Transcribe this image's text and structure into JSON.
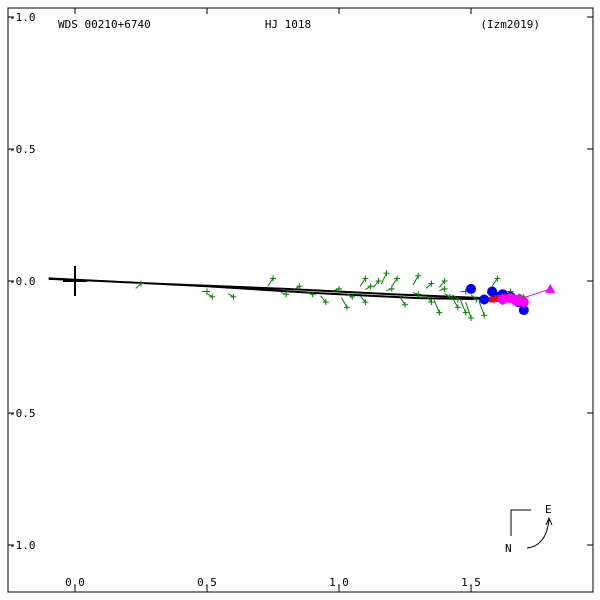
{
  "chart_data": {
    "type": "scatter",
    "header": {
      "left": "WDS 00210+6740",
      "center": "HJ 1018",
      "right": "(Izm2019)"
    },
    "xlim": [
      -0.1,
      1.9
    ],
    "ylim": [
      -1.1,
      1.0
    ],
    "y_inverted": true,
    "x_ticks": [
      {
        "v": 0.0,
        "label": "0.0"
      },
      {
        "v": 0.5,
        "label": "0.5"
      },
      {
        "v": 1.0,
        "label": "1.0"
      },
      {
        "v": 1.5,
        "label": "1.5"
      }
    ],
    "y_ticks": [
      {
        "v": -1.0,
        "label": "-1.0"
      },
      {
        "v": -0.5,
        "label": "-0.5"
      },
      {
        "v": 0.0,
        "label": "-0.0"
      },
      {
        "v": 0.5,
        "label": "-0.5"
      },
      {
        "v": 1.0,
        "label": "-1.0"
      }
    ],
    "primary": {
      "x": 0.0,
      "y": 0.0
    },
    "orbit": {
      "color": "#000000",
      "points": [
        [
          -0.1,
          -0.01
        ],
        [
          0.3,
          0.01
        ],
        [
          0.8,
          0.03
        ],
        [
          1.2,
          0.05
        ],
        [
          1.55,
          0.065
        ],
        [
          1.67,
          0.075
        ],
        [
          1.69,
          0.08
        ],
        [
          1.62,
          0.07
        ],
        [
          1.3,
          0.065
        ],
        [
          0.9,
          0.045
        ],
        [
          0.5,
          0.02
        ],
        [
          0.1,
          0.0
        ],
        [
          -0.1,
          -0.008
        ]
      ]
    },
    "micrometer": {
      "color": "#008000",
      "points": [
        [
          0.25,
          0.01
        ],
        [
          0.5,
          0.04
        ],
        [
          0.52,
          0.06
        ],
        [
          0.6,
          0.06
        ],
        [
          0.75,
          -0.01
        ],
        [
          0.85,
          0.02
        ],
        [
          0.9,
          0.05
        ],
        [
          0.95,
          0.08
        ],
        [
          1.0,
          0.03
        ],
        [
          1.05,
          0.06
        ],
        [
          1.1,
          0.08
        ],
        [
          1.12,
          0.02
        ],
        [
          1.15,
          0.0
        ],
        [
          1.2,
          0.03
        ],
        [
          1.25,
          0.09
        ],
        [
          1.3,
          0.05
        ],
        [
          1.35,
          0.08
        ],
        [
          1.38,
          0.12
        ],
        [
          1.4,
          0.03
        ],
        [
          1.42,
          0.06
        ],
        [
          1.45,
          0.1
        ],
        [
          1.48,
          0.04
        ],
        [
          1.5,
          0.14
        ],
        [
          1.52,
          0.07
        ],
        [
          1.55,
          0.13
        ],
        [
          1.58,
          0.05
        ],
        [
          1.3,
          -0.02
        ],
        [
          1.22,
          -0.01
        ],
        [
          1.4,
          0.0
        ],
        [
          1.6,
          -0.01
        ],
        [
          1.62,
          0.08
        ],
        [
          1.65,
          0.04
        ],
        [
          1.7,
          0.06
        ],
        [
          1.35,
          0.01
        ],
        [
          1.45,
          0.07
        ],
        [
          1.03,
          0.1
        ],
        [
          0.8,
          0.05
        ],
        [
          1.18,
          -0.03
        ],
        [
          1.48,
          0.12
        ],
        [
          1.1,
          -0.01
        ]
      ]
    },
    "photographic": {
      "color": "#0000ff",
      "points": [
        [
          1.5,
          0.03
        ],
        [
          1.58,
          0.04
        ],
        [
          1.62,
          0.05
        ],
        [
          1.6,
          0.06
        ],
        [
          1.65,
          0.06
        ],
        [
          1.68,
          0.08
        ],
        [
          1.7,
          0.11
        ],
        [
          1.55,
          0.07
        ]
      ]
    },
    "interferometric": {
      "color": "#ff00ff",
      "points": [
        [
          1.62,
          0.07
        ],
        [
          1.65,
          0.065
        ],
        [
          1.68,
          0.07
        ],
        [
          1.7,
          0.08
        ],
        [
          1.67,
          0.075
        ]
      ]
    },
    "speckle_red": {
      "color": "#ff0000",
      "points": [
        [
          1.58,
          0.07
        ],
        [
          1.6,
          0.065
        ],
        [
          1.63,
          0.06
        ],
        [
          1.66,
          0.07
        ]
      ]
    },
    "latest": {
      "x": 1.8,
      "y": 0.03,
      "color": "#ff00ff"
    },
    "compass": {
      "north_label": "N",
      "east_label": "E"
    }
  }
}
